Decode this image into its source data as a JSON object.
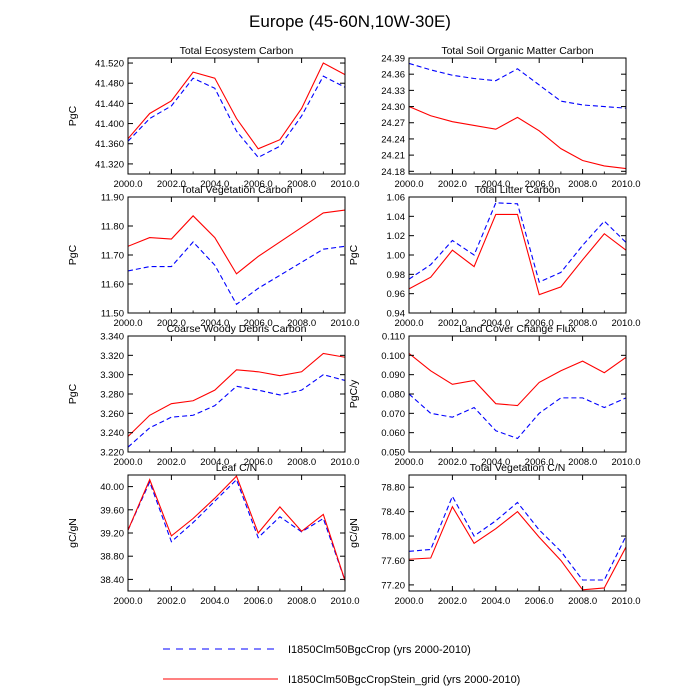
{
  "figure": {
    "title": "Europe (45-60N,10W-30E)",
    "legend": [
      {
        "label": "I1850Clm50BgcCrop (yrs 2000-2010)",
        "color": "#0000ff",
        "dash": true
      },
      {
        "label": "I1850Clm50BgcCropStein_grid (yrs 2000-2010)",
        "color": "#ff0000",
        "dash": false
      }
    ]
  },
  "chart_data": [
    {
      "type": "line",
      "title": "Total Ecosystem Carbon",
      "ylabel": "PgC",
      "x": [
        2000,
        2001,
        2002,
        2003,
        2004,
        2005,
        2006,
        2007,
        2008,
        2009,
        2010
      ],
      "xlim": [
        2000,
        2010
      ],
      "xticks": [
        "2000.0",
        "2002.0",
        "2004.0",
        "2006.0",
        "2008.0",
        "2010.0"
      ],
      "ylim": [
        41.3,
        41.53
      ],
      "yticks": [
        41.32,
        41.36,
        41.4,
        41.44,
        41.48,
        41.52
      ],
      "yticklabels": [
        "41.320",
        "41.360",
        "41.400",
        "41.440",
        "41.480",
        "41.520"
      ],
      "series": [
        {
          "color": "#0000ff",
          "dash": true,
          "values": [
            41.365,
            41.41,
            41.435,
            41.49,
            41.47,
            41.385,
            41.333,
            41.355,
            41.415,
            41.494,
            41.472
          ]
        },
        {
          "color": "#ff0000",
          "dash": false,
          "values": [
            41.37,
            41.42,
            41.445,
            41.502,
            41.49,
            41.41,
            41.35,
            41.368,
            41.43,
            41.52,
            41.497
          ]
        }
      ]
    },
    {
      "type": "line",
      "title": "Total Soil Organic Matter Carbon",
      "ylabel": "",
      "x": [
        2000,
        2001,
        2002,
        2003,
        2004,
        2005,
        2006,
        2007,
        2008,
        2009,
        2010
      ],
      "xlim": [
        2000,
        2010
      ],
      "xticks": [
        "2000.0",
        "2002.0",
        "2004.0",
        "2006.0",
        "2008.0",
        "2010.0"
      ],
      "ylim": [
        24.175,
        24.39
      ],
      "yticks": [
        24.18,
        24.21,
        24.24,
        24.27,
        24.3,
        24.33,
        24.36,
        24.39
      ],
      "yticklabels": [
        "24.18",
        "24.21",
        "24.24",
        "24.27",
        "24.30",
        "24.33",
        "24.36",
        "24.39"
      ],
      "series": [
        {
          "color": "#0000ff",
          "dash": true,
          "values": [
            24.38,
            24.368,
            24.358,
            24.352,
            24.348,
            24.37,
            24.34,
            24.31,
            24.303,
            24.3,
            24.297
          ]
        },
        {
          "color": "#ff0000",
          "dash": false,
          "values": [
            24.3,
            24.283,
            24.272,
            24.265,
            24.258,
            24.28,
            24.255,
            24.222,
            24.2,
            24.19,
            24.185
          ]
        }
      ]
    },
    {
      "type": "line",
      "title": "Total Vegetation Carbon",
      "ylabel": "PgC",
      "x": [
        2000,
        2001,
        2002,
        2003,
        2004,
        2005,
        2006,
        2007,
        2008,
        2009,
        2010
      ],
      "xlim": [
        2000,
        2010
      ],
      "xticks": [
        "2000.0",
        "2002.0",
        "2004.0",
        "2006.0",
        "2008.0",
        "2010.0"
      ],
      "ylim": [
        11.5,
        11.9
      ],
      "yticks": [
        11.5,
        11.6,
        11.7,
        11.8,
        11.9
      ],
      "yticklabels": [
        "11.50",
        "11.60",
        "11.70",
        "11.80",
        "11.90"
      ],
      "series": [
        {
          "color": "#0000ff",
          "dash": true,
          "values": [
            11.645,
            11.66,
            11.66,
            11.745,
            11.665,
            11.53,
            11.585,
            11.63,
            11.675,
            11.72,
            11.73
          ]
        },
        {
          "color": "#ff0000",
          "dash": false,
          "values": [
            11.73,
            11.76,
            11.755,
            11.835,
            11.76,
            11.635,
            11.695,
            11.745,
            11.795,
            11.845,
            11.855
          ]
        }
      ]
    },
    {
      "type": "line",
      "title": "Total Litter Carbon",
      "ylabel": "PgC",
      "x": [
        2000,
        2001,
        2002,
        2003,
        2004,
        2005,
        2006,
        2007,
        2008,
        2009,
        2010
      ],
      "xlim": [
        2000,
        2010
      ],
      "xticks": [
        "2000.0",
        "2002.0",
        "2004.0",
        "2006.0",
        "2008.0",
        "2010.0"
      ],
      "ylim": [
        0.94,
        1.06
      ],
      "yticks": [
        0.94,
        0.96,
        0.98,
        1.0,
        1.02,
        1.04,
        1.06
      ],
      "yticklabels": [
        "0.94",
        "0.96",
        "0.98",
        "1.00",
        "1.02",
        "1.04",
        "1.06"
      ],
      "series": [
        {
          "color": "#0000ff",
          "dash": true,
          "values": [
            0.975,
            0.99,
            1.015,
            1.0,
            1.054,
            1.053,
            0.972,
            0.982,
            1.01,
            1.035,
            1.013
          ]
        },
        {
          "color": "#ff0000",
          "dash": false,
          "values": [
            0.965,
            0.977,
            1.005,
            0.988,
            1.042,
            1.042,
            0.959,
            0.967,
            0.995,
            1.022,
            1.005
          ]
        }
      ]
    },
    {
      "type": "line",
      "title": "Coarse Woody Debris Carbon",
      "ylabel": "PgC",
      "x": [
        2000,
        2001,
        2002,
        2003,
        2004,
        2005,
        2006,
        2007,
        2008,
        2009,
        2010
      ],
      "xlim": [
        2000,
        2010
      ],
      "xticks": [
        "2000.0",
        "2002.0",
        "2004.0",
        "2006.0",
        "2008.0",
        "2010.0"
      ],
      "ylim": [
        3.22,
        3.34
      ],
      "yticks": [
        3.22,
        3.24,
        3.26,
        3.28,
        3.3,
        3.32,
        3.34
      ],
      "yticklabels": [
        "3.220",
        "3.240",
        "3.260",
        "3.280",
        "3.300",
        "3.320",
        "3.340"
      ],
      "series": [
        {
          "color": "#0000ff",
          "dash": true,
          "values": [
            3.225,
            3.245,
            3.256,
            3.258,
            3.268,
            3.288,
            3.284,
            3.279,
            3.284,
            3.3,
            3.294
          ]
        },
        {
          "color": "#ff0000",
          "dash": false,
          "values": [
            3.236,
            3.258,
            3.27,
            3.273,
            3.284,
            3.305,
            3.303,
            3.299,
            3.303,
            3.322,
            3.318
          ]
        }
      ]
    },
    {
      "type": "line",
      "title": "Land Cover Change Flux",
      "ylabel": "PgC/y",
      "x": [
        2000,
        2001,
        2002,
        2003,
        2004,
        2005,
        2006,
        2007,
        2008,
        2009,
        2010
      ],
      "xlim": [
        2000,
        2010
      ],
      "xticks": [
        "2000.0",
        "2002.0",
        "2004.0",
        "2006.0",
        "2008.0",
        "2010.0"
      ],
      "ylim": [
        0.05,
        0.11
      ],
      "yticks": [
        0.05,
        0.06,
        0.07,
        0.08,
        0.09,
        0.1,
        0.11
      ],
      "yticklabels": [
        "0.050",
        "0.060",
        "0.070",
        "0.080",
        "0.090",
        "0.100",
        "0.110"
      ],
      "series": [
        {
          "color": "#0000ff",
          "dash": true,
          "values": [
            0.08,
            0.07,
            0.068,
            0.073,
            0.061,
            0.057,
            0.07,
            0.078,
            0.078,
            0.073,
            0.078
          ]
        },
        {
          "color": "#ff0000",
          "dash": false,
          "values": [
            0.101,
            0.092,
            0.085,
            0.087,
            0.075,
            0.074,
            0.086,
            0.092,
            0.097,
            0.091,
            0.099
          ]
        }
      ]
    },
    {
      "type": "line",
      "title": "Leaf C/N",
      "ylabel": "gC/gN",
      "x": [
        2000,
        2001,
        2002,
        2003,
        2004,
        2005,
        2006,
        2007,
        2008,
        2009,
        2010
      ],
      "xlim": [
        2000,
        2010
      ],
      "xticks": [
        "2000.0",
        "2002.0",
        "2004.0",
        "2006.0",
        "2008.0",
        "2010.0"
      ],
      "ylim": [
        38.2,
        40.2
      ],
      "yticks": [
        38.4,
        38.8,
        39.2,
        39.6,
        40.0
      ],
      "yticklabels": [
        "38.40",
        "38.80",
        "39.20",
        "39.60",
        "40.00"
      ],
      "series": [
        {
          "color": "#0000ff",
          "dash": true,
          "values": [
            39.25,
            40.08,
            39.05,
            39.38,
            39.75,
            40.12,
            39.12,
            39.48,
            39.22,
            39.45,
            38.38
          ]
        },
        {
          "color": "#ff0000",
          "dash": false,
          "values": [
            39.25,
            40.12,
            39.15,
            39.45,
            39.8,
            40.18,
            39.2,
            39.65,
            39.23,
            39.52,
            38.38
          ]
        }
      ]
    },
    {
      "type": "line",
      "title": "Total Vegetation C/N",
      "ylabel": "gC/gN",
      "x": [
        2000,
        2001,
        2002,
        2003,
        2004,
        2005,
        2006,
        2007,
        2008,
        2009,
        2010
      ],
      "xlim": [
        2000,
        2010
      ],
      "xticks": [
        "2000.0",
        "2002.0",
        "2004.0",
        "2006.0",
        "2008.0",
        "2010.0"
      ],
      "ylim": [
        77.1,
        79.0
      ],
      "yticks": [
        77.2,
        77.6,
        78.0,
        78.4,
        78.8
      ],
      "yticklabels": [
        "77.20",
        "77.60",
        "78.00",
        "78.40",
        "78.80"
      ],
      "series": [
        {
          "color": "#0000ff",
          "dash": true,
          "values": [
            77.75,
            77.78,
            78.65,
            78.0,
            78.25,
            78.55,
            78.1,
            77.75,
            77.28,
            77.28,
            78.0
          ]
        },
        {
          "color": "#ff0000",
          "dash": false,
          "values": [
            77.62,
            77.64,
            78.48,
            77.88,
            78.12,
            78.4,
            77.98,
            77.6,
            77.12,
            77.15,
            77.82
          ]
        }
      ]
    }
  ]
}
